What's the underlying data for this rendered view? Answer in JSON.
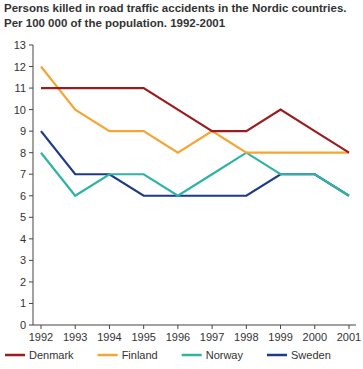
{
  "chart_data": {
    "type": "line",
    "title": "Persons killed in road traffic accidents in the Nordic countries. Per 100 000 of the population.  1992-2001",
    "categories": [
      "1992",
      "1993",
      "1994",
      "1995",
      "1996",
      "1997",
      "1998",
      "1999",
      "2000",
      "2001"
    ],
    "series": [
      {
        "name": "Denmark",
        "color": "#9b1c1f",
        "values": [
          11,
          11,
          11,
          11,
          10,
          9,
          9,
          10,
          9,
          8
        ]
      },
      {
        "name": "Finland",
        "color": "#f5a531",
        "values": [
          12,
          10,
          9,
          9,
          8,
          9,
          8,
          8,
          8,
          8
        ]
      },
      {
        "name": "Norway",
        "color": "#2fb3a6",
        "values": [
          8,
          6,
          7,
          7,
          6,
          7,
          8,
          7,
          7,
          6
        ]
      },
      {
        "name": "Sweden",
        "color": "#1d3a8a",
        "values": [
          9,
          7,
          7,
          6,
          6,
          6,
          6,
          7,
          7,
          6
        ]
      }
    ],
    "ylim": [
      0,
      13
    ],
    "yticks": [
      0,
      1,
      2,
      3,
      4,
      5,
      6,
      7,
      8,
      9,
      10,
      11,
      12,
      13
    ],
    "grid": false,
    "legend": "bottom"
  }
}
